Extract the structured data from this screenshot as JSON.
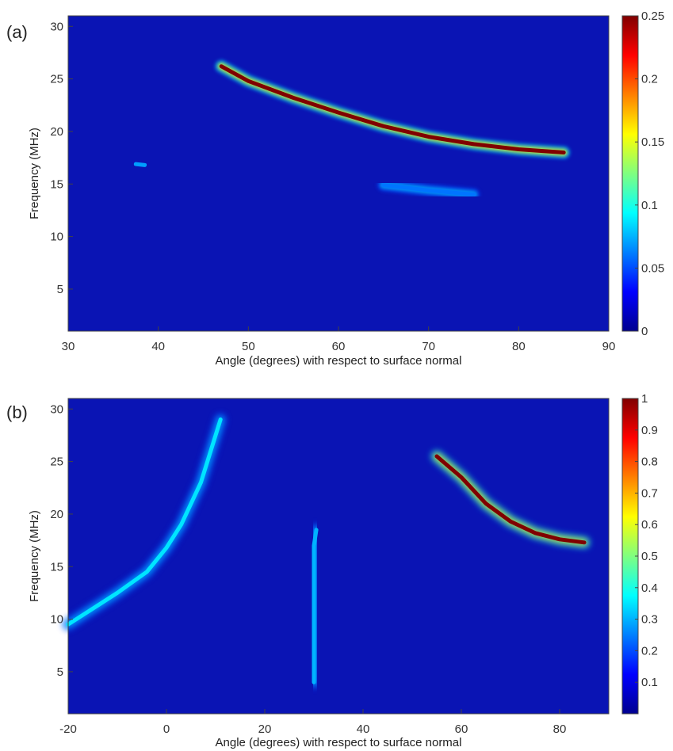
{
  "colors": {
    "background": "#0a14b4",
    "colormap": [
      "#00008f",
      "#0000ff",
      "#00ffff",
      "#ffff00",
      "#ff0000",
      "#800000"
    ]
  },
  "chart_data": [
    {
      "type": "heatmap",
      "panel_label": "(a)",
      "xlabel": "Angle (degrees) with respect to surface normal",
      "ylabel": "Frequency (MHz)",
      "xlim": [
        30,
        90
      ],
      "ylim": [
        1,
        31
      ],
      "x_ticks": [
        "30",
        "40",
        "50",
        "60",
        "70",
        "80",
        "90"
      ],
      "y_ticks": [
        "5",
        "10",
        "15",
        "20",
        "25",
        "30"
      ],
      "colorbar": {
        "min": 0,
        "max": 0.25,
        "ticks": [
          "0",
          "0.05",
          "0.1",
          "0.15",
          "0.2",
          "0.25"
        ]
      },
      "features": [
        {
          "name": "main band",
          "points": [
            [
              47,
              26.2
            ],
            [
              50,
              24.8
            ],
            [
              55,
              23.2
            ],
            [
              60,
              21.8
            ],
            [
              65,
              20.5
            ],
            [
              70,
              19.5
            ],
            [
              75,
              18.8
            ],
            [
              80,
              18.3
            ],
            [
              85,
              18.0
            ]
          ],
          "peak": 0.25
        },
        {
          "name": "weak band",
          "points": [
            [
              65,
              14.9
            ],
            [
              70,
              14.4
            ],
            [
              75,
              14.0
            ]
          ],
          "peak": 0.06
        },
        {
          "name": "spot",
          "points": [
            [
              37.5,
              16.9
            ],
            [
              38.5,
              16.8
            ]
          ],
          "peak": 0.07
        }
      ]
    },
    {
      "type": "heatmap",
      "panel_label": "(b)",
      "xlabel": "Angle (degrees) with respect to surface normal",
      "ylabel": "Frequency (MHz)",
      "xlim": [
        -20,
        90
      ],
      "ylim": [
        1,
        31
      ],
      "x_ticks": [
        "-20",
        "0",
        "20",
        "40",
        "60",
        "80"
      ],
      "y_ticks": [
        "5",
        "10",
        "15",
        "20",
        "25",
        "30"
      ],
      "colorbar": {
        "min": 0,
        "max": 1,
        "ticks": [
          "0.1",
          "0.2",
          "0.3",
          "0.4",
          "0.5",
          "0.6",
          "0.7",
          "0.8",
          "0.9",
          "1"
        ]
      },
      "features": [
        {
          "name": "right band",
          "points": [
            [
              55,
              25.5
            ],
            [
              60,
              23.5
            ],
            [
              65,
              21.0
            ],
            [
              70,
              19.3
            ],
            [
              75,
              18.2
            ],
            [
              80,
              17.6
            ],
            [
              85,
              17.3
            ]
          ],
          "peak": 1.0
        },
        {
          "name": "left band",
          "points": [
            [
              -20,
              9.5
            ],
            [
              -10,
              12.5
            ],
            [
              -4,
              14.5
            ],
            [
              0,
              16.8
            ],
            [
              3,
              19.0
            ],
            [
              7,
              23.0
            ],
            [
              11,
              29.0
            ]
          ],
          "peak": 0.35
        },
        {
          "name": "vertical streak",
          "points": [
            [
              30,
              4
            ],
            [
              30,
              8
            ],
            [
              30,
              12
            ],
            [
              30,
              15
            ],
            [
              30,
              17
            ],
            [
              30.5,
              18.5
            ]
          ],
          "peak": 0.3
        }
      ]
    }
  ]
}
